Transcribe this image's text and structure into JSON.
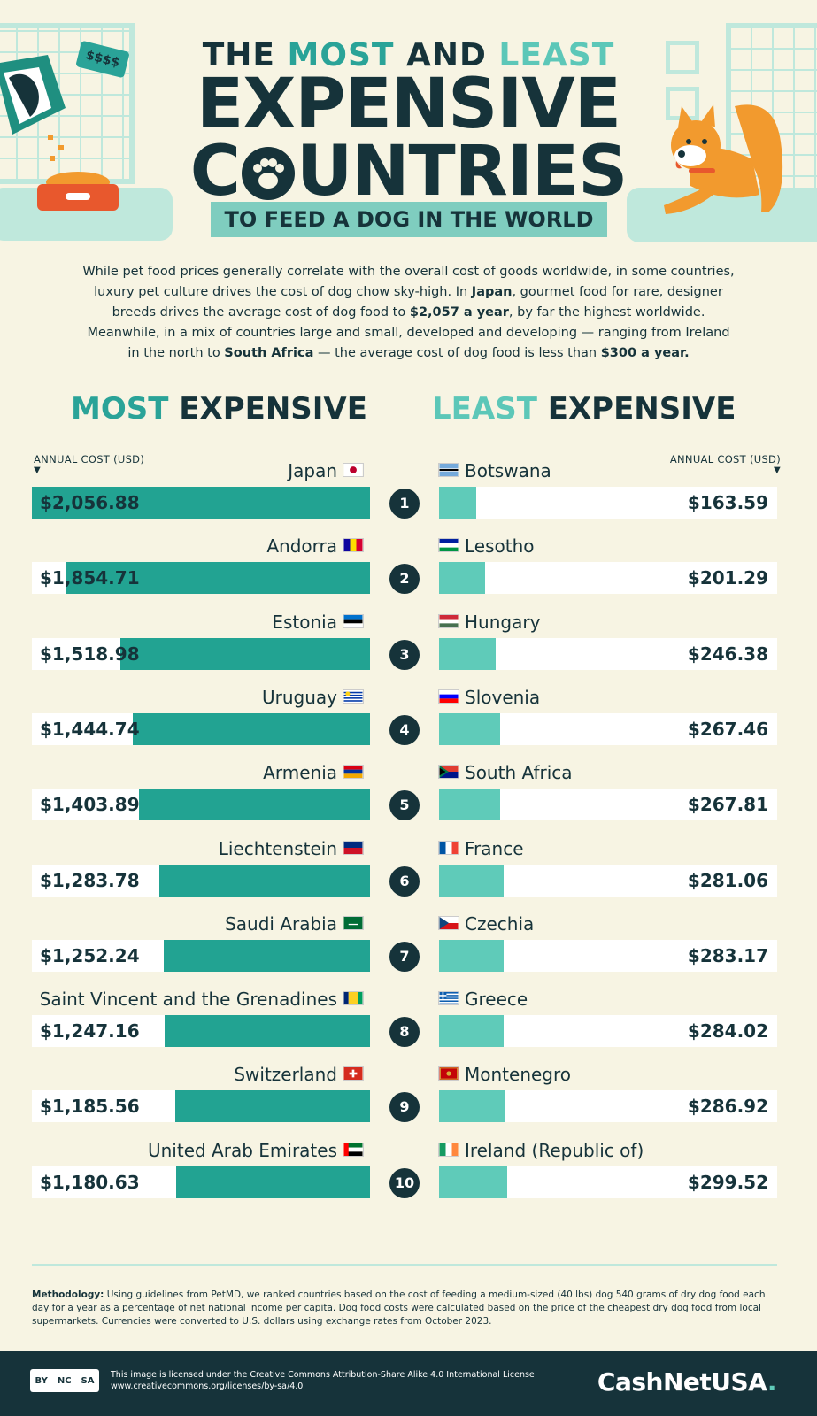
{
  "header": {
    "line1_pre": "THE ",
    "line1_acc": "MOST",
    "line1_mid": " AND ",
    "line1_acc2": "LEAST",
    "line2": "EXPENSIVE",
    "line3_pre": "C",
    "line3_post": "UNTRIES",
    "subtitle": "TO FEED A DOG IN THE WORLD",
    "tag": "$$$$"
  },
  "intro": {
    "p1": "While pet food prices generally correlate with the overall cost of goods worldwide, in some countries, luxury pet culture drives the cost of dog chow sky-high. In ",
    "b1": "Japan",
    "p2": ", gourmet food for rare, designer breeds drives the average cost of dog food to ",
    "b2": "$2,057 a year",
    "p3": ", by far the highest worldwide. Meanwhile, in a mix of countries large and small, developed and developing — ranging from Ireland in the north to ",
    "b3": "South Africa",
    "p4": " — the average cost of dog food is less than ",
    "b4": "$300 a year."
  },
  "sections": {
    "most_acc": "MOST",
    "most_rest": " EXPENSIVE",
    "least_acc": "LEAST",
    "least_rest": " EXPENSIVE",
    "axis_label": "ANNUAL COST (USD)"
  },
  "chart_data": [
    {
      "type": "bar",
      "title": "MOST EXPENSIVE",
      "ylabel": "ANNUAL COST (USD)",
      "categories": [
        "Japan",
        "Andorra",
        "Estonia",
        "Uruguay",
        "Armenia",
        "Liechtenstein",
        "Saudi Arabia",
        "Saint Vincent and the Grenadines",
        "Switzerland",
        "United Arab Emirates"
      ],
      "values": [
        2056.88,
        1854.71,
        1518.98,
        1444.74,
        1403.89,
        1283.78,
        1252.24,
        1247.16,
        1185.56,
        1180.63
      ],
      "labels": [
        "$2,056.88",
        "$1,854.71",
        "$1,518.98",
        "$1,444.74",
        "$1,403.89",
        "$1,283.78",
        "$1,252.24",
        "$1,247.16",
        "$1,185.56",
        "$1,180.63"
      ],
      "ranks": [
        "1",
        "2",
        "3",
        "4",
        "5",
        "6",
        "7",
        "8",
        "9",
        "10"
      ]
    },
    {
      "type": "bar",
      "title": "LEAST EXPENSIVE",
      "ylabel": "ANNUAL COST (USD)",
      "categories": [
        "Botswana",
        "Lesotho",
        "Hungary",
        "Slovenia",
        "South Africa",
        "France",
        "Czechia",
        "Greece",
        "Montenegro",
        "Ireland (Republic of)"
      ],
      "values": [
        163.59,
        201.29,
        246.38,
        267.46,
        267.81,
        281.06,
        283.17,
        284.02,
        286.92,
        299.52
      ],
      "labels": [
        "$163.59",
        "$201.29",
        "$246.38",
        "$267.46",
        "$267.81",
        "$281.06",
        "$283.17",
        "$284.02",
        "$286.92",
        "$299.52"
      ]
    }
  ],
  "colors": {
    "most_bar": "#22a392",
    "least_bar": "#5fcbb9",
    "dark": "#16333a",
    "background": "#f7f4e3"
  },
  "methodology": {
    "label": "Methodology:",
    "text": " Using guidelines from PetMD, we ranked countries based on the cost of feeding a medium-sized (40 lbs) dog 540 grams of dry dog food each day for a year as a percentage of net national income per capita. Dog food costs were calculated based on the price of the cheapest dry dog food from local supermarkets. Currencies were converted to U.S. dollars using exchange rates from October 2023."
  },
  "footer": {
    "cc_labels": [
      "BY",
      "NC",
      "SA"
    ],
    "license_line1": "This image is licensed under the Creative Commons Attribution-Share Alike 4.0 International License",
    "license_line2": "www.creativecommons.org/licenses/by-sa/4.0",
    "brand": "CashNetUSA",
    "brand_suffix": "."
  }
}
